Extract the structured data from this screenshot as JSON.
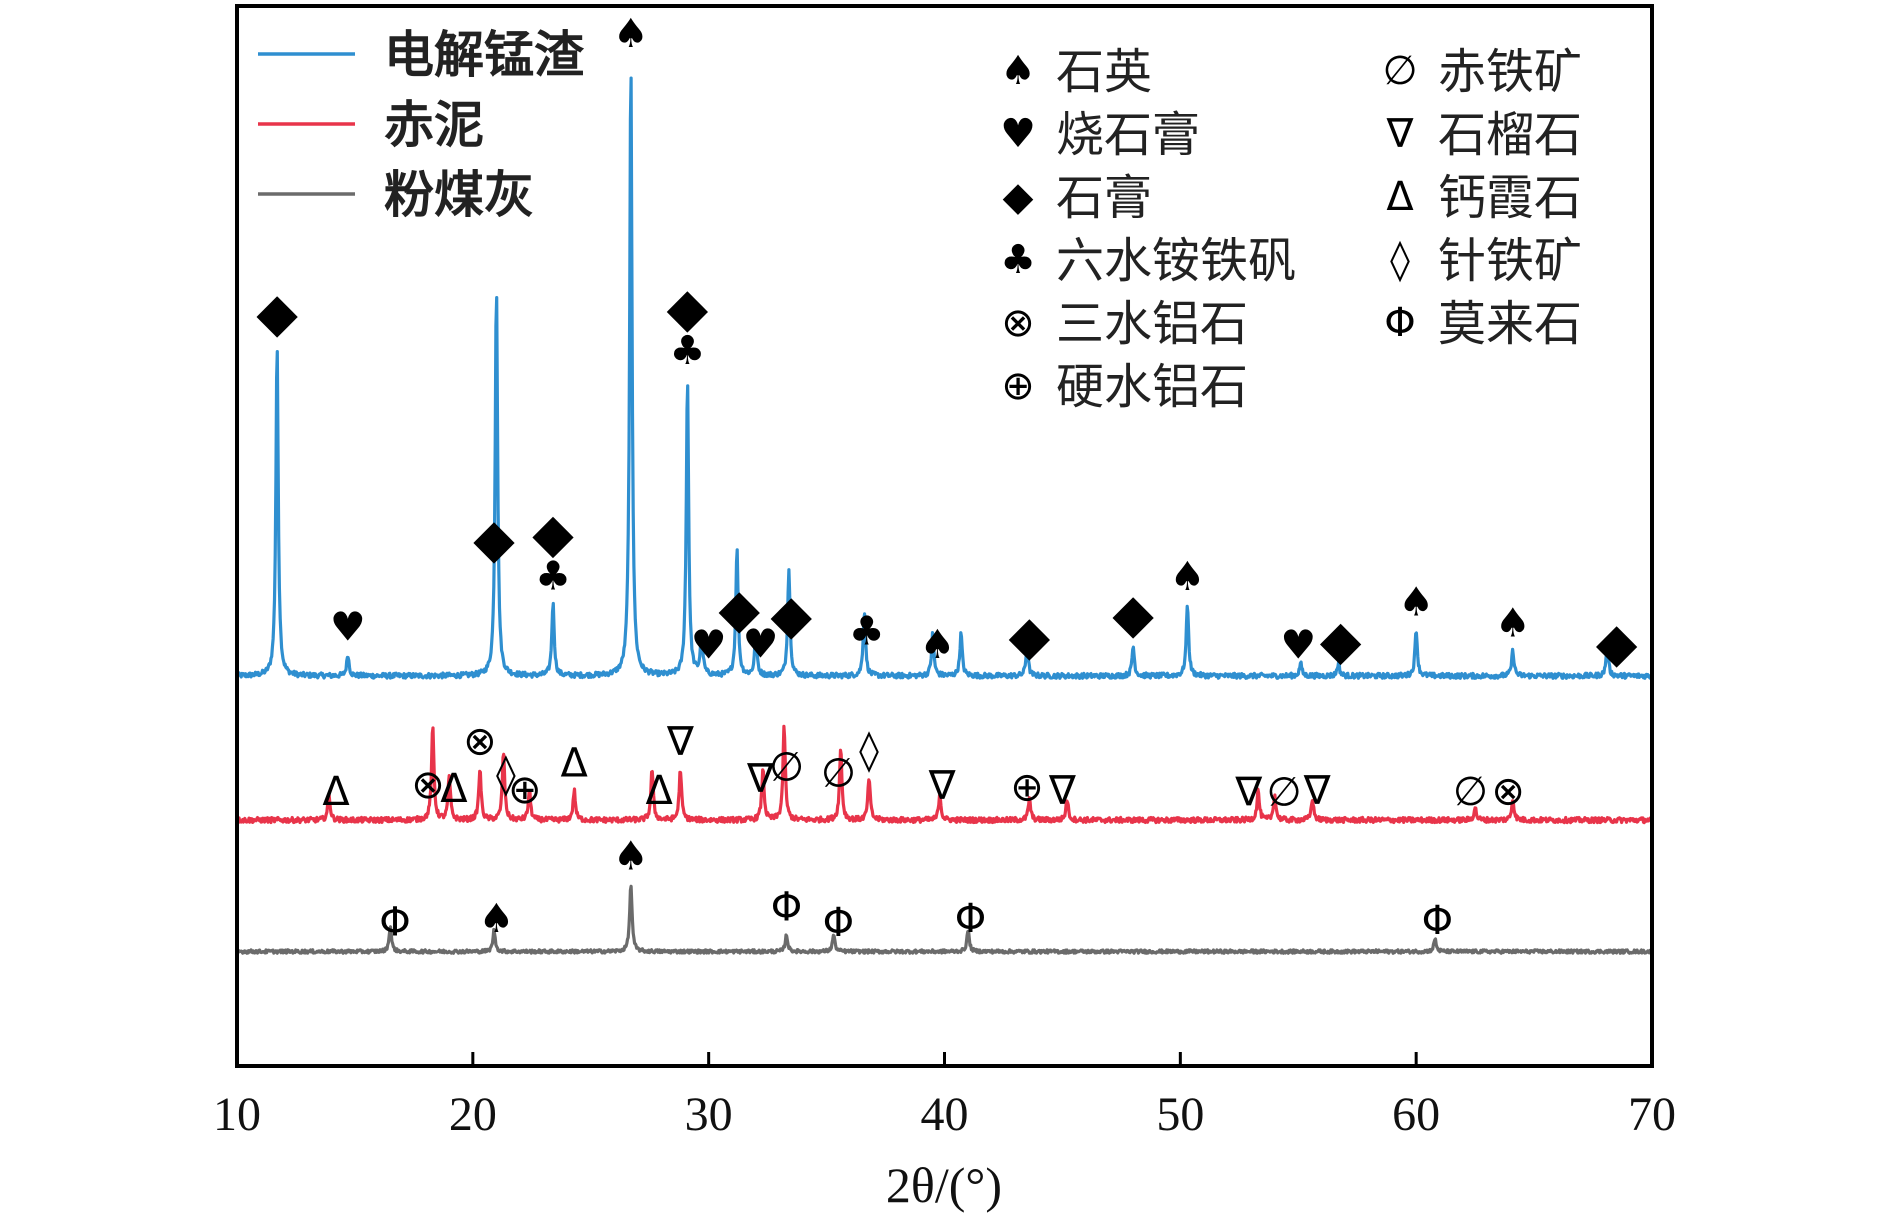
{
  "chart_data": {
    "type": "line",
    "title": "",
    "xlabel": "2θ/(°)",
    "ylabel": "",
    "xlim": [
      10,
      70
    ],
    "xticks": [
      "10",
      "20",
      "30",
      "40",
      "50",
      "60",
      "70"
    ],
    "grid": false,
    "legend_placement": "top-left",
    "series": [
      {
        "name": "电解锰渣",
        "color": "#2f8fd0",
        "baseline": 0.72,
        "noise": 0.006,
        "peaks": [
          [
            11.7,
            0.78
          ],
          [
            14.7,
            0.05
          ],
          [
            21.0,
            0.92
          ],
          [
            23.4,
            0.17
          ],
          [
            26.7,
            1.45
          ],
          [
            29.1,
            0.7
          ],
          [
            29.7,
            0.1
          ],
          [
            31.2,
            0.3
          ],
          [
            32.0,
            0.1
          ],
          [
            33.4,
            0.25
          ],
          [
            36.6,
            0.15
          ],
          [
            39.5,
            0.1
          ],
          [
            40.7,
            0.1
          ],
          [
            43.5,
            0.07
          ],
          [
            48.0,
            0.07
          ],
          [
            50.3,
            0.17
          ],
          [
            55.1,
            0.03
          ],
          [
            56.7,
            0.03
          ],
          [
            60.0,
            0.11
          ],
          [
            64.1,
            0.06
          ],
          [
            68.1,
            0.07
          ]
        ]
      },
      {
        "name": "赤泥",
        "color": "#e8344a",
        "baseline": 0.38,
        "noise": 0.006,
        "peaks": [
          [
            13.9,
            0.06
          ],
          [
            18.3,
            0.22
          ],
          [
            19.0,
            0.1
          ],
          [
            20.3,
            0.12
          ],
          [
            21.3,
            0.16
          ],
          [
            22.4,
            0.07
          ],
          [
            24.3,
            0.07
          ],
          [
            27.6,
            0.12
          ],
          [
            28.8,
            0.12
          ],
          [
            32.3,
            0.12
          ],
          [
            33.2,
            0.22
          ],
          [
            35.6,
            0.17
          ],
          [
            36.8,
            0.1
          ],
          [
            39.8,
            0.06
          ],
          [
            43.6,
            0.05
          ],
          [
            45.2,
            0.05
          ],
          [
            53.3,
            0.07
          ],
          [
            54.0,
            0.06
          ],
          [
            55.6,
            0.05
          ],
          [
            62.5,
            0.03
          ],
          [
            64.1,
            0.05
          ]
        ]
      },
      {
        "name": "粉煤灰",
        "color": "#6b6b6b",
        "baseline": 0.07,
        "noise": 0.004,
        "peaks": [
          [
            16.5,
            0.06
          ],
          [
            20.9,
            0.05
          ],
          [
            26.7,
            0.16
          ],
          [
            33.3,
            0.04
          ],
          [
            35.3,
            0.04
          ],
          [
            41.0,
            0.05
          ],
          [
            60.8,
            0.03
          ]
        ]
      }
    ],
    "phase_legend": [
      {
        "symbol": "♠",
        "label": "石英"
      },
      {
        "symbol": "♥",
        "label": "烧石膏"
      },
      {
        "symbol": "◆",
        "label": "石膏"
      },
      {
        "symbol": "♣",
        "label": "六水铵铁矾"
      },
      {
        "symbol": "⊗",
        "label": "三水铝石"
      },
      {
        "symbol": "⊕",
        "label": "硬水铝石"
      },
      {
        "symbol": "∅",
        "label": "赤铁矿"
      },
      {
        "symbol": "∇",
        "label": "石榴石"
      },
      {
        "symbol": "Δ",
        "label": "钙霞石"
      },
      {
        "symbol": "◊",
        "label": "针铁矿"
      },
      {
        "symbol": "Φ",
        "label": "莫来石"
      }
    ],
    "annotations": {
      "电解锰渣": [
        {
          "x": 11.7,
          "symbols": "◆"
        },
        {
          "x": 14.7,
          "symbols": "♥"
        },
        {
          "x": 20.9,
          "symbols": "◆"
        },
        {
          "x": 23.4,
          "symbols": "◆♣"
        },
        {
          "x": 26.7,
          "symbols": "♠"
        },
        {
          "x": 29.1,
          "symbols": "◆♣"
        },
        {
          "x": 30.0,
          "symbols": "♥"
        },
        {
          "x": 31.3,
          "symbols": "◆"
        },
        {
          "x": 32.2,
          "symbols": "♥"
        },
        {
          "x": 33.5,
          "symbols": "◆"
        },
        {
          "x": 36.7,
          "symbols": "♣"
        },
        {
          "x": 39.7,
          "symbols": "♠"
        },
        {
          "x": 43.6,
          "symbols": "◆"
        },
        {
          "x": 48.0,
          "symbols": "◆"
        },
        {
          "x": 50.3,
          "symbols": "♠"
        },
        {
          "x": 55.0,
          "symbols": "♥"
        },
        {
          "x": 56.8,
          "symbols": "◆"
        },
        {
          "x": 60.0,
          "symbols": "♠"
        },
        {
          "x": 64.1,
          "symbols": "♠"
        },
        {
          "x": 68.5,
          "symbols": "◆"
        }
      ],
      "赤泥": [
        {
          "x": 14.2,
          "symbols": "Δ"
        },
        {
          "x": 18.1,
          "symbols": "⊗"
        },
        {
          "x": 19.2,
          "symbols": "Δ"
        },
        {
          "x": 20.3,
          "symbols": "⊗"
        },
        {
          "x": 21.4,
          "symbols": "◊"
        },
        {
          "x": 22.2,
          "symbols": "⊕"
        },
        {
          "x": 24.3,
          "symbols": "Δ"
        },
        {
          "x": 27.9,
          "symbols": "Δ"
        },
        {
          "x": 28.8,
          "symbols": "∇"
        },
        {
          "x": 32.2,
          "symbols": "∇"
        },
        {
          "x": 33.3,
          "symbols": "∅"
        },
        {
          "x": 35.5,
          "symbols": "∅"
        },
        {
          "x": 36.8,
          "symbols": "◊"
        },
        {
          "x": 39.9,
          "symbols": "∇"
        },
        {
          "x": 43.5,
          "symbols": "⊕"
        },
        {
          "x": 45.0,
          "symbols": "∇"
        },
        {
          "x": 52.9,
          "symbols": "∇"
        },
        {
          "x": 54.4,
          "symbols": "∅"
        },
        {
          "x": 55.8,
          "symbols": "∇"
        },
        {
          "x": 62.3,
          "symbols": "∅"
        },
        {
          "x": 63.9,
          "symbols": "⊗"
        }
      ],
      "粉煤灰": [
        {
          "x": 16.7,
          "symbols": "Φ"
        },
        {
          "x": 21.0,
          "symbols": "♠"
        },
        {
          "x": 26.7,
          "symbols": "♠"
        },
        {
          "x": 33.3,
          "symbols": "Φ"
        },
        {
          "x": 35.5,
          "symbols": "Φ"
        },
        {
          "x": 41.1,
          "symbols": "Φ"
        },
        {
          "x": 60.9,
          "symbols": "Φ"
        }
      ]
    }
  }
}
